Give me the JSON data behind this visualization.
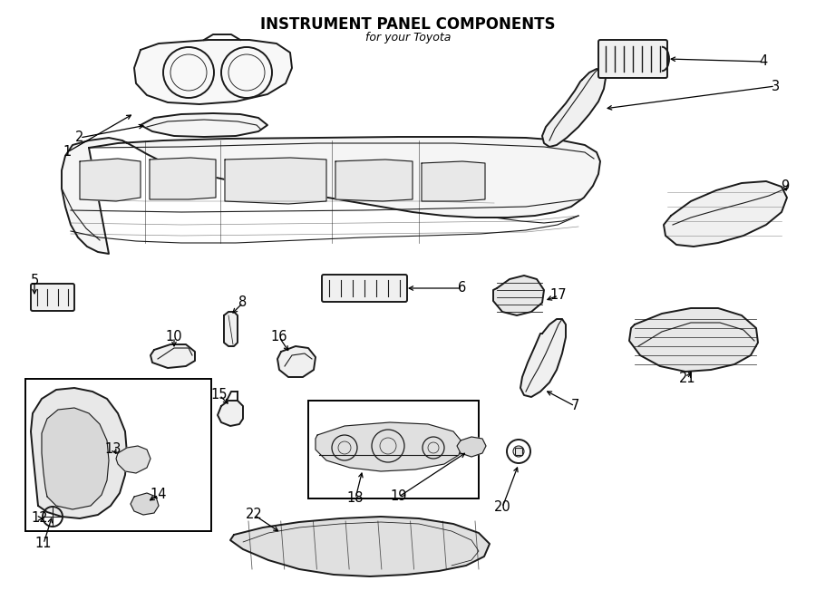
{
  "title": "INSTRUMENT PANEL COMPONENTS",
  "subtitle": "for your Toyota",
  "bg_color": "#ffffff",
  "line_color": "#1a1a1a",
  "lw_main": 1.4,
  "lw_thin": 0.8,
  "figw": 9.0,
  "figh": 6.62,
  "dpi": 100
}
